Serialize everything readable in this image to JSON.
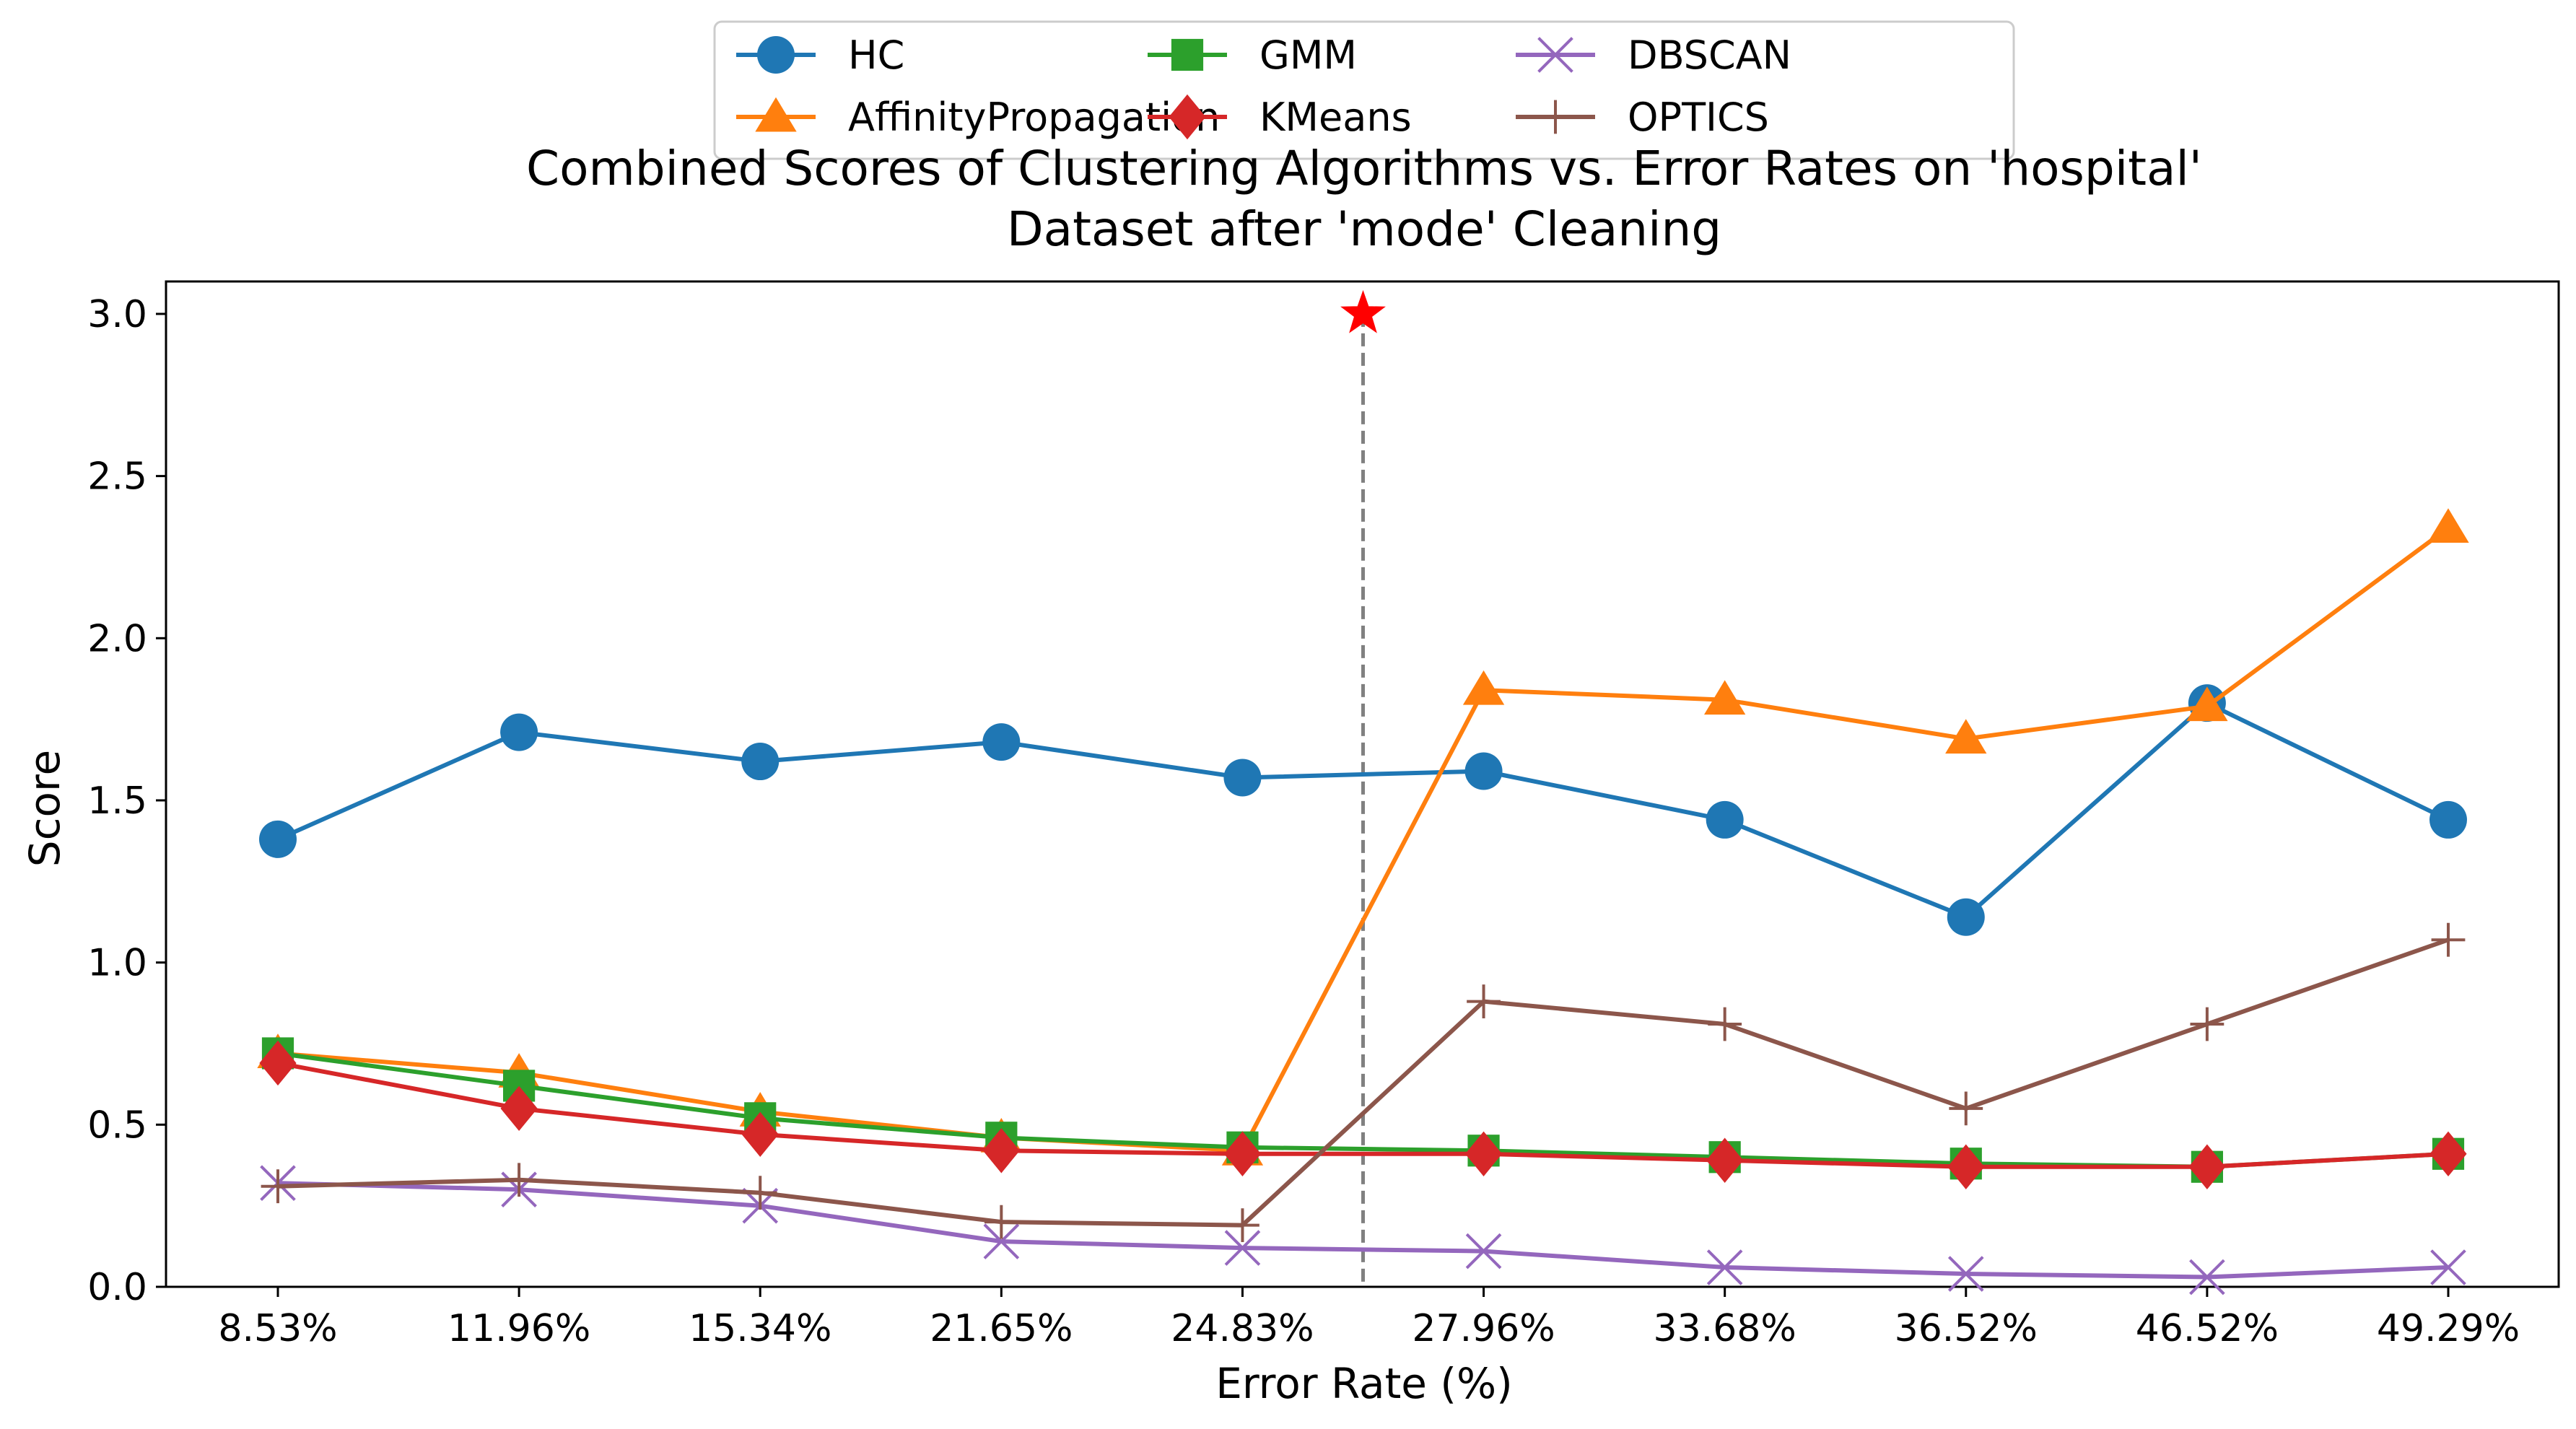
{
  "chart_data": {
    "type": "line",
    "title_lines": [
      "Combined Scores of Clustering Algorithms vs. Error Rates on 'hospital'",
      "Dataset after 'mode' Cleaning"
    ],
    "xlabel": "Error Rate (%)",
    "ylabel": "Score",
    "categories": [
      "8.53%",
      "11.96%",
      "15.34%",
      "21.65%",
      "24.83%",
      "27.96%",
      "33.68%",
      "36.52%",
      "46.52%",
      "49.29%"
    ],
    "yticks": [
      "0.0",
      "0.5",
      "1.0",
      "1.5",
      "2.0",
      "2.5",
      "3.0"
    ],
    "ylim": [
      0,
      3.1
    ],
    "grid": false,
    "legend_position": "top-center",
    "series": [
      {
        "name": "HC",
        "color": "#1f77b4",
        "marker": "circle",
        "values": [
          1.38,
          1.71,
          1.62,
          1.68,
          1.57,
          1.59,
          1.44,
          1.14,
          1.8,
          1.44
        ]
      },
      {
        "name": "AffinityPropagation",
        "color": "#ff7f0e",
        "marker": "triangle",
        "values": [
          0.72,
          0.66,
          0.54,
          0.46,
          0.42,
          1.84,
          1.81,
          1.69,
          1.79,
          2.34
        ]
      },
      {
        "name": "GMM",
        "color": "#2ca02c",
        "marker": "square",
        "values": [
          0.72,
          0.62,
          0.52,
          0.46,
          0.43,
          0.42,
          0.4,
          0.38,
          0.37,
          0.41
        ]
      },
      {
        "name": "KMeans",
        "color": "#d62728",
        "marker": "diamond",
        "values": [
          0.69,
          0.55,
          0.47,
          0.42,
          0.41,
          0.41,
          0.39,
          0.37,
          0.37,
          0.41
        ]
      },
      {
        "name": "DBSCAN",
        "color": "#9467bd",
        "marker": "x",
        "values": [
          0.32,
          0.3,
          0.25,
          0.14,
          0.12,
          0.11,
          0.06,
          0.04,
          0.03,
          0.06
        ]
      },
      {
        "name": "OPTICS",
        "color": "#8c564b",
        "marker": "plus",
        "values": [
          0.31,
          0.33,
          0.29,
          0.2,
          0.19,
          0.88,
          0.81,
          0.55,
          0.81,
          1.07
        ]
      }
    ],
    "annotations": {
      "vertical_line": {
        "x_between": [
          "24.83%",
          "27.96%"
        ],
        "style": "dashed",
        "color": "#808080"
      },
      "star": {
        "x_between": [
          "24.83%",
          "27.96%"
        ],
        "y": 3.0,
        "color": "#ff0000"
      }
    }
  }
}
